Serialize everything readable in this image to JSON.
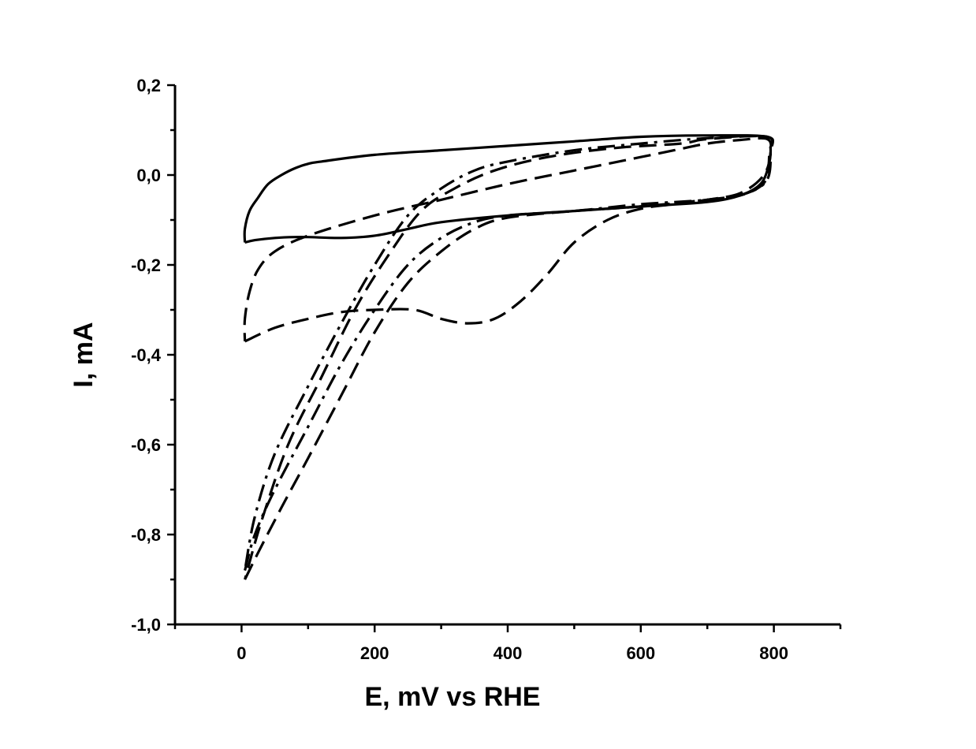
{
  "chart_data": {
    "type": "line",
    "title": "",
    "xlabel": "E, mV vs RHE",
    "ylabel": "I, mA",
    "xlim": [
      -100,
      900
    ],
    "ylim": [
      -1.0,
      0.2
    ],
    "x_ticks": [
      0,
      200,
      400,
      600,
      800
    ],
    "x_tick_labels": [
      "0",
      "200",
      "400",
      "600",
      "800"
    ],
    "y_ticks": [
      -1.0,
      -0.8,
      -0.6,
      -0.4,
      -0.2,
      0.0,
      0.2
    ],
    "y_tick_labels": [
      "-1,0",
      "-0,8",
      "-0,6",
      "-0,4",
      "-0,2",
      "0,0",
      "0,2"
    ],
    "grid": false,
    "series": [
      {
        "style": "solid",
        "color": "#000000",
        "points": [
          [
            5,
            -0.15
          ],
          [
            20,
            -0.145
          ],
          [
            50,
            -0.14
          ],
          [
            80,
            -0.138
          ],
          [
            100,
            -0.138
          ],
          [
            150,
            -0.14
          ],
          [
            200,
            -0.135
          ],
          [
            250,
            -0.12
          ],
          [
            300,
            -0.105
          ],
          [
            400,
            -0.09
          ],
          [
            500,
            -0.08
          ],
          [
            600,
            -0.07
          ],
          [
            700,
            -0.06
          ],
          [
            750,
            -0.045
          ],
          [
            780,
            -0.02
          ],
          [
            792,
            0.02
          ],
          [
            795,
            0.06
          ],
          [
            790,
            0.085
          ],
          [
            700,
            0.088
          ],
          [
            600,
            0.085
          ],
          [
            500,
            0.075
          ],
          [
            400,
            0.065
          ],
          [
            300,
            0.055
          ],
          [
            200,
            0.045
          ],
          [
            120,
            0.03
          ],
          [
            100,
            0.025
          ],
          [
            80,
            0.015
          ],
          [
            60,
            0.0
          ],
          [
            40,
            -0.02
          ],
          [
            25,
            -0.05
          ],
          [
            12,
            -0.08
          ],
          [
            5,
            -0.12
          ],
          [
            5,
            -0.15
          ]
        ]
      },
      {
        "style": "dashed",
        "color": "#000000",
        "points": [
          [
            5,
            -0.37
          ],
          [
            50,
            -0.34
          ],
          [
            100,
            -0.32
          ],
          [
            150,
            -0.305
          ],
          [
            200,
            -0.3
          ],
          [
            260,
            -0.3
          ],
          [
            300,
            -0.32
          ],
          [
            340,
            -0.33
          ],
          [
            380,
            -0.32
          ],
          [
            420,
            -0.28
          ],
          [
            460,
            -0.22
          ],
          [
            500,
            -0.15
          ],
          [
            550,
            -0.1
          ],
          [
            600,
            -0.075
          ],
          [
            650,
            -0.065
          ],
          [
            700,
            -0.055
          ],
          [
            750,
            -0.04
          ],
          [
            785,
            0.0
          ],
          [
            795,
            0.05
          ],
          [
            790,
            0.08
          ],
          [
            750,
            0.078
          ],
          [
            700,
            0.07
          ],
          [
            650,
            0.055
          ],
          [
            600,
            0.04
          ],
          [
            500,
            0.01
          ],
          [
            400,
            -0.02
          ],
          [
            300,
            -0.055
          ],
          [
            200,
            -0.09
          ],
          [
            100,
            -0.135
          ],
          [
            50,
            -0.17
          ],
          [
            25,
            -0.21
          ],
          [
            12,
            -0.26
          ],
          [
            5,
            -0.32
          ],
          [
            5,
            -0.37
          ]
        ]
      },
      {
        "style": "dash-dot",
        "color": "#000000",
        "points": [
          [
            5,
            -0.88
          ],
          [
            20,
            -0.8
          ],
          [
            50,
            -0.7
          ],
          [
            100,
            -0.56
          ],
          [
            150,
            -0.42
          ],
          [
            200,
            -0.3
          ],
          [
            250,
            -0.2
          ],
          [
            300,
            -0.14
          ],
          [
            350,
            -0.105
          ],
          [
            400,
            -0.09
          ],
          [
            500,
            -0.08
          ],
          [
            600,
            -0.065
          ],
          [
            700,
            -0.055
          ],
          [
            760,
            -0.04
          ],
          [
            790,
            -0.01
          ],
          [
            795,
            0.05
          ],
          [
            790,
            0.085
          ],
          [
            700,
            0.082
          ],
          [
            600,
            0.07
          ],
          [
            500,
            0.055
          ],
          [
            400,
            0.03
          ],
          [
            350,
            0.01
          ],
          [
            300,
            -0.03
          ],
          [
            250,
            -0.09
          ],
          [
            200,
            -0.2
          ],
          [
            150,
            -0.33
          ],
          [
            100,
            -0.47
          ],
          [
            50,
            -0.62
          ],
          [
            20,
            -0.76
          ],
          [
            5,
            -0.88
          ]
        ]
      },
      {
        "style": "dashed",
        "color": "#000000",
        "points": [
          [
            5,
            -0.9
          ],
          [
            25,
            -0.84
          ],
          [
            60,
            -0.74
          ],
          [
            100,
            -0.63
          ],
          [
            150,
            -0.49
          ],
          [
            200,
            -0.35
          ],
          [
            250,
            -0.24
          ],
          [
            300,
            -0.17
          ],
          [
            350,
            -0.12
          ],
          [
            400,
            -0.095
          ],
          [
            500,
            -0.08
          ],
          [
            600,
            -0.07
          ],
          [
            700,
            -0.055
          ],
          [
            750,
            -0.045
          ],
          [
            780,
            -0.025
          ],
          [
            790,
            0.0
          ],
          [
            793,
            0.05
          ],
          [
            790,
            0.085
          ],
          [
            700,
            0.08
          ],
          [
            660,
            0.07
          ],
          [
            560,
            0.06
          ],
          [
            460,
            0.04
          ],
          [
            380,
            0.01
          ],
          [
            320,
            -0.03
          ],
          [
            270,
            -0.08
          ],
          [
            220,
            -0.18
          ],
          [
            170,
            -0.3
          ],
          [
            120,
            -0.45
          ],
          [
            70,
            -0.6
          ],
          [
            30,
            -0.77
          ],
          [
            5,
            -0.9
          ]
        ]
      }
    ]
  }
}
